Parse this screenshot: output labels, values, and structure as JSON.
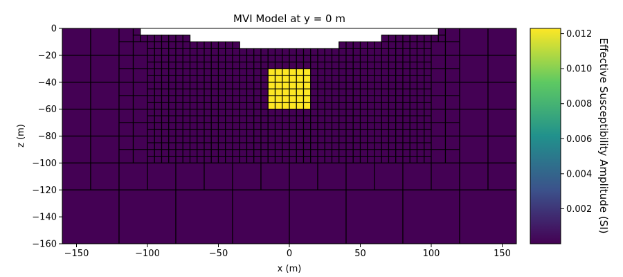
{
  "chart_data": {
    "type": "heatmap",
    "title": "MVI Model at y = 0 m",
    "xlabel": "x (m)",
    "ylabel": "z (m)",
    "xlim": [
      -160,
      160
    ],
    "ylim": [
      -160,
      0
    ],
    "xticks": [
      -150,
      -100,
      -50,
      0,
      50,
      100,
      150
    ],
    "yticks": [
      0,
      -20,
      -40,
      -60,
      -80,
      -100,
      -120,
      -140,
      -160
    ],
    "colorbar": {
      "label": "Effective Susceptibility Amplitude (SI)",
      "vmin": 0.0,
      "vmax": 0.0123,
      "ticks": [
        0.002,
        0.004,
        0.006,
        0.008,
        0.01,
        0.012
      ],
      "colormap": "viridis"
    },
    "topography": [
      {
        "x0": -160,
        "x1": -105,
        "z": 0
      },
      {
        "x0": -105,
        "x1": -65,
        "z": -5
      },
      {
        "x0": -65,
        "x1": -35,
        "z": -10
      },
      {
        "x0": -35,
        "x1": 35,
        "z": -15
      },
      {
        "x0": 35,
        "x1": 65,
        "z": -10
      },
      {
        "x0": 65,
        "x1": 105,
        "z": -5
      },
      {
        "x0": 105,
        "x1": 160,
        "z": 0
      }
    ],
    "background_value": 0.0,
    "anomaly": {
      "x_range": [
        -15,
        15
      ],
      "z_range": [
        -60,
        -30
      ],
      "value": 0.0123
    },
    "mesh": {
      "fine_cell_size_m": 5,
      "fine_region": {
        "x": [
          -100,
          100
        ],
        "z": [
          -90,
          -15
        ]
      }
    }
  },
  "colors": {
    "low": "#440154",
    "high": "#fde725",
    "edge": "#000000"
  }
}
